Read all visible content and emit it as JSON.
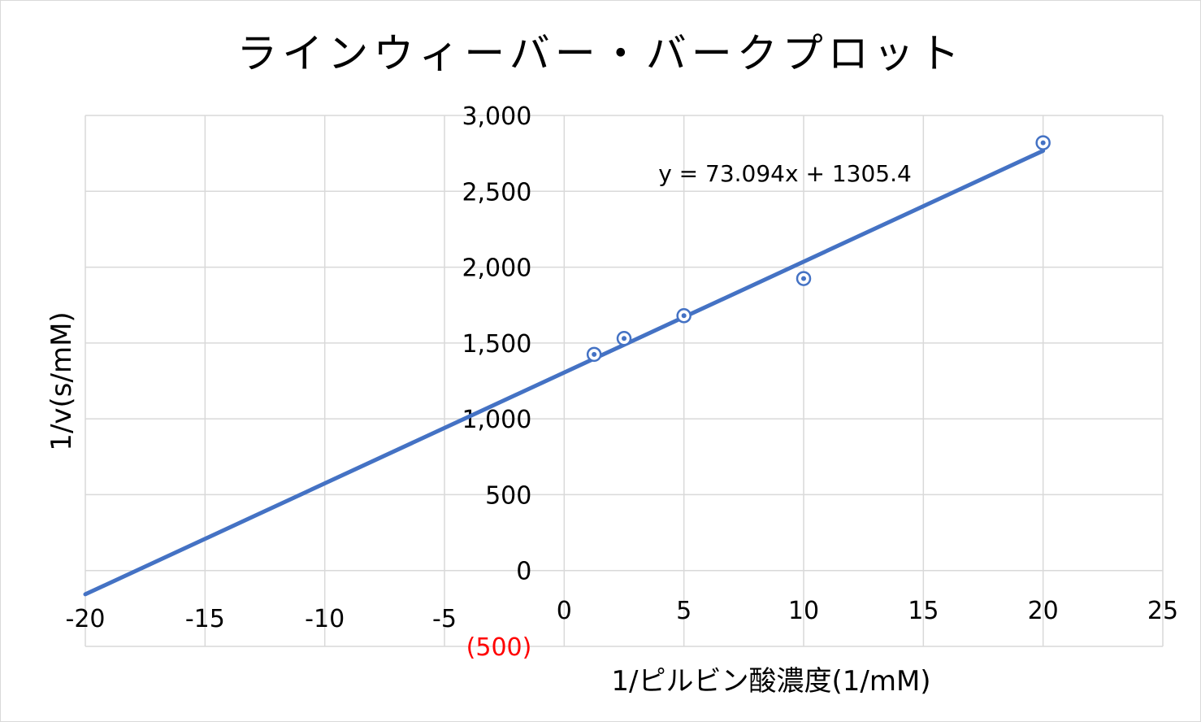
{
  "chart_data": {
    "type": "scatter",
    "title": "ラインウィーバー・バークプロット",
    "xlabel": "1/ピルビン酸濃度(1/mM)",
    "ylabel": "1/v(s/mM)",
    "xlim": [
      -20,
      25
    ],
    "ylim": [
      -500,
      3000
    ],
    "x_ticks": [
      "-20",
      "-15",
      "-10",
      "-5",
      "0",
      "5",
      "10",
      "15",
      "20",
      "25"
    ],
    "y_ticks": [
      "(500)",
      "0",
      "500",
      "1,000",
      "1,500",
      "2,000",
      "2,500",
      "3,000"
    ],
    "grid": true,
    "points": [
      {
        "x": 1.25,
        "y": 1425
      },
      {
        "x": 2.5,
        "y": 1530
      },
      {
        "x": 5,
        "y": 1680
      },
      {
        "x": 10,
        "y": 1925
      },
      {
        "x": 20,
        "y": 2820
      }
    ],
    "trendline": {
      "slope": 73.094,
      "intercept": 1305.4,
      "x_range": [
        -20,
        20
      ],
      "equation": "y = 73.094x + 1305.4"
    },
    "colors": {
      "series": "#4472c4",
      "grid": "#d9d9d9",
      "negative_label": "#ff0000"
    }
  }
}
